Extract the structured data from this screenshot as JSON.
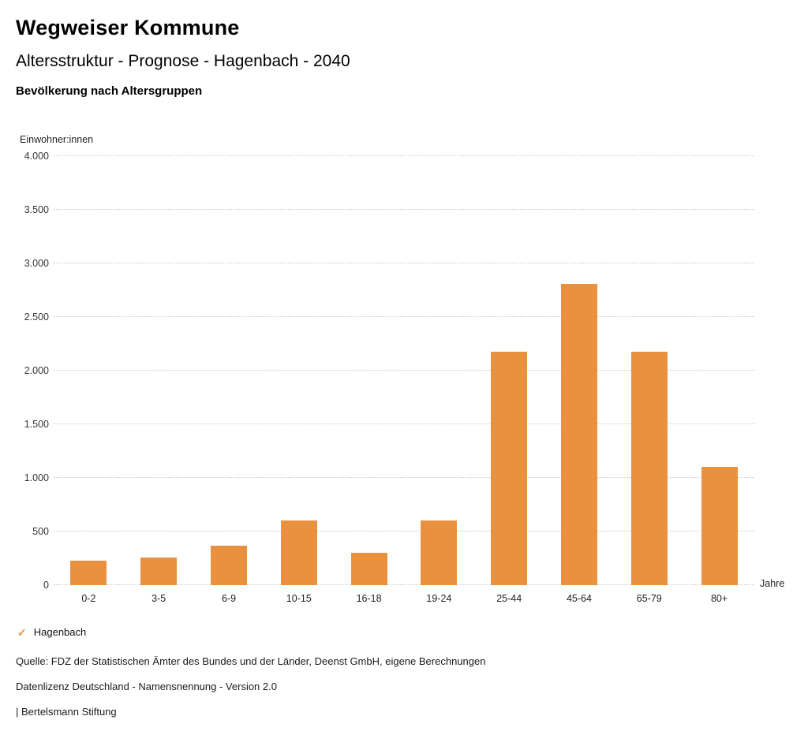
{
  "header": {
    "title": "Wegweiser Kommune",
    "subtitle": "Altersstruktur - Prognose - Hagenbach - 2040",
    "chart_title": "Bevölkerung nach Altersgruppen"
  },
  "chart_data": {
    "type": "bar",
    "title": "Bevölkerung nach Altersgruppen",
    "y_axis_label": "Einwohner:innen",
    "x_unit": "Jahre",
    "categories": [
      "0-2",
      "3-5",
      "6-9",
      "10-15",
      "16-18",
      "19-24",
      "25-44",
      "45-64",
      "65-79",
      "80+"
    ],
    "series": [
      {
        "name": "Hagenbach",
        "values": [
          230,
          260,
          370,
          600,
          300,
          600,
          2180,
          2810,
          2180,
          1100
        ]
      }
    ],
    "ylim": [
      0,
      4000
    ],
    "ytick_step": 500,
    "ytick_labels": [
      "0",
      "500",
      "1.000",
      "1.500",
      "2.000",
      "2.500",
      "3.000",
      "3.500",
      "4.000"
    ],
    "grid": "horizontal-dotted",
    "legend_position": "bottom-left",
    "bar_color": "#EA9140"
  },
  "legend": {
    "check_icon": "✓",
    "label": "Hagenbach",
    "color": "#EA9140"
  },
  "footer": {
    "source": "Quelle: FDZ der Statistischen Ämter des Bundes und der Länder, Deenst GmbH, eigene Berechnungen",
    "license": "Datenlizenz Deutschland - Namensnennung - Version 2.0",
    "brand": "| Bertelsmann Stiftung"
  }
}
